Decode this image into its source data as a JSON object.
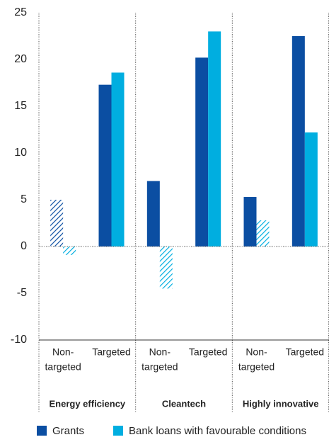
{
  "chart_data": {
    "type": "bar",
    "groups": [
      "Energy efficiency",
      "Cleantech",
      "Highly innovative"
    ],
    "categories": [
      [
        "Non-",
        "targeted"
      ],
      [
        "Targeted"
      ],
      [
        "Non-",
        "targeted"
      ],
      [
        "Targeted"
      ],
      [
        "Non-",
        "targeted"
      ],
      [
        "Targeted"
      ]
    ],
    "series": [
      {
        "name": "Grants",
        "color": "#0b4ea2",
        "values": [
          5,
          17.3,
          7,
          20.2,
          5.3,
          22.5
        ],
        "hatched": [
          true,
          false,
          false,
          false,
          false,
          false
        ]
      },
      {
        "name": "Bank loans with favourable conditions",
        "color": "#00aee0",
        "values": [
          -0.9,
          18.6,
          -4.5,
          23,
          2.8,
          12.2
        ],
        "hatched": [
          true,
          false,
          true,
          false,
          true,
          false
        ]
      }
    ],
    "ylim": [
      -10,
      25
    ],
    "yticks": [
      -10,
      -5,
      0,
      5,
      10,
      15,
      20,
      25
    ],
    "grid": false
  }
}
